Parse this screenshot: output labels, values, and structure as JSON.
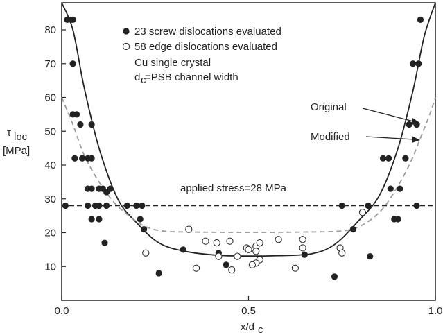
{
  "chart_data": {
    "type": "scatter",
    "xlabel_main": "x/d",
    "xlabel_sub": "c",
    "ylabel_main": "τ",
    "ylabel_sub": "loc",
    "ylabel_unit": "[MPa]",
    "xlim": [
      0.0,
      1.0
    ],
    "ylim": [
      0,
      88
    ],
    "x_ticks": [
      "0.0",
      "0.5",
      "1.0"
    ],
    "y_ticks": [
      10,
      20,
      30,
      40,
      50,
      60,
      70,
      80
    ],
    "legend": {
      "screw": "23 screw dislocations evaluated",
      "edge": "58 edge dislocations evaluated",
      "note1": "Cu single crystal",
      "note2_main": "d",
      "note2_sub": "c",
      "note2_rest": "=PSB channel width"
    },
    "annotations": {
      "original": "Original",
      "modified": "Modified",
      "applied": "applied stress=28 MPa"
    },
    "applied_stress": 28,
    "series": [
      {
        "marker": "filled",
        "points": [
          [
            0.01,
            28
          ],
          [
            0.015,
            83
          ],
          [
            0.025,
            83
          ],
          [
            0.03,
            83
          ],
          [
            0.03,
            70
          ],
          [
            0.03,
            55
          ],
          [
            0.04,
            55
          ],
          [
            0.035,
            42
          ],
          [
            0.055,
            42
          ],
          [
            0.07,
            42
          ],
          [
            0.08,
            42
          ],
          [
            0.05,
            52
          ],
          [
            0.08,
            52
          ],
          [
            0.07,
            33
          ],
          [
            0.08,
            33
          ],
          [
            0.07,
            28
          ],
          [
            0.09,
            28
          ],
          [
            0.08,
            24
          ],
          [
            0.1,
            24
          ],
          [
            0.1,
            28
          ],
          [
            0.12,
            28
          ],
          [
            0.1,
            33
          ],
          [
            0.11,
            33
          ],
          [
            0.12,
            32
          ],
          [
            0.13,
            33
          ],
          [
            0.115,
            17
          ],
          [
            0.175,
            28
          ],
          [
            0.2,
            28
          ],
          [
            0.215,
            28
          ],
          [
            0.21,
            24
          ],
          [
            0.22,
            21
          ],
          [
            0.26,
            8
          ],
          [
            0.325,
            15
          ],
          [
            0.42,
            14
          ],
          [
            0.44,
            10.5
          ],
          [
            0.65,
            13.5
          ],
          [
            0.73,
            7
          ],
          [
            0.75,
            28
          ],
          [
            0.78,
            21
          ],
          [
            0.82,
            28
          ],
          [
            0.825,
            13
          ],
          [
            0.86,
            42
          ],
          [
            0.875,
            42
          ],
          [
            0.88,
            33
          ],
          [
            0.89,
            24
          ],
          [
            0.9,
            24
          ],
          [
            0.905,
            33
          ],
          [
            0.92,
            42
          ],
          [
            0.93,
            52
          ],
          [
            0.95,
            52
          ],
          [
            0.94,
            70
          ],
          [
            0.955,
            70
          ],
          [
            0.95,
            28
          ],
          [
            0.96,
            83
          ]
        ]
      },
      {
        "marker": "open",
        "points": [
          [
            0.225,
            14
          ],
          [
            0.34,
            21
          ],
          [
            0.36,
            9.5
          ],
          [
            0.385,
            17.5
          ],
          [
            0.415,
            17
          ],
          [
            0.42,
            13
          ],
          [
            0.45,
            17.5
          ],
          [
            0.455,
            9
          ],
          [
            0.47,
            13
          ],
          [
            0.495,
            15.5
          ],
          [
            0.5,
            15
          ],
          [
            0.52,
            16
          ],
          [
            0.52,
            14.5
          ],
          [
            0.53,
            12
          ],
          [
            0.52,
            11
          ],
          [
            0.51,
            10.5
          ],
          [
            0.53,
            17
          ],
          [
            0.58,
            18
          ],
          [
            0.625,
            9.5
          ],
          [
            0.645,
            15.5
          ],
          [
            0.645,
            18
          ],
          [
            0.745,
            15.5
          ],
          [
            0.75,
            14
          ],
          [
            0.805,
            26
          ]
        ]
      }
    ],
    "curves": [
      {
        "name": "Original",
        "style": "solid",
        "points": [
          [
            0.0,
            88
          ],
          [
            0.03,
            80
          ],
          [
            0.06,
            63
          ],
          [
            0.1,
            45
          ],
          [
            0.15,
            30
          ],
          [
            0.2,
            23
          ],
          [
            0.26,
            17
          ],
          [
            0.33,
            14.5
          ],
          [
            0.42,
            13.3
          ],
          [
            0.5,
            13.1
          ],
          [
            0.58,
            13.2
          ],
          [
            0.67,
            13.8
          ],
          [
            0.73,
            16.5
          ],
          [
            0.79,
            23
          ],
          [
            0.85,
            31
          ],
          [
            0.9,
            45
          ],
          [
            0.94,
            62
          ],
          [
            0.97,
            78
          ],
          [
            1.0,
            88
          ]
        ]
      },
      {
        "name": "Modified",
        "style": "dashed",
        "points": [
          [
            0.0,
            60
          ],
          [
            0.03,
            52
          ],
          [
            0.06,
            43
          ],
          [
            0.1,
            35
          ],
          [
            0.14,
            29
          ],
          [
            0.18,
            25
          ],
          [
            0.22,
            22
          ],
          [
            0.27,
            20.5
          ],
          [
            0.35,
            20.2
          ],
          [
            0.5,
            20.1
          ],
          [
            0.65,
            20.2
          ],
          [
            0.75,
            20.5
          ],
          [
            0.8,
            22
          ],
          [
            0.85,
            26
          ],
          [
            0.89,
            32
          ],
          [
            0.93,
            40
          ],
          [
            0.96,
            48
          ],
          [
            0.985,
            55
          ],
          [
            1.0,
            60
          ]
        ]
      }
    ]
  }
}
